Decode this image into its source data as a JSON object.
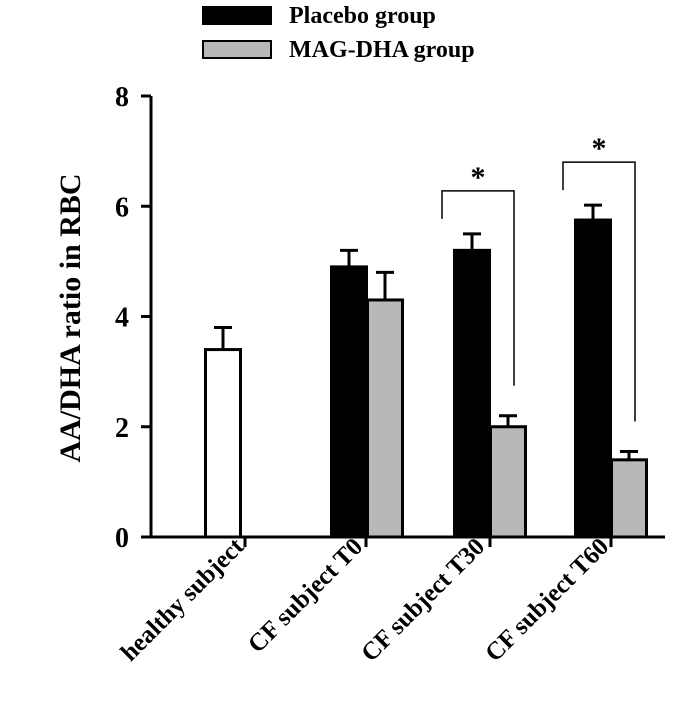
{
  "chart_data": {
    "type": "bar",
    "title": "",
    "xlabel": "",
    "ylabel": "AA/DHA ratio in RBC",
    "ylim": [
      0,
      8
    ],
    "yticks": [
      "0",
      "2",
      "4",
      "6",
      "8"
    ],
    "grid": false,
    "legend_position": "top",
    "categories": [
      "healthy subject",
      "CF subject T0",
      "CF subject T30",
      "CF subject T60"
    ],
    "series": [
      {
        "name": "Placebo group",
        "color": "#000000",
        "values": [
          null,
          4.9,
          5.2,
          5.75
        ],
        "errors": [
          null,
          0.3,
          0.3,
          0.27
        ]
      },
      {
        "name": "MAG-DHA group",
        "color": "#b8b8b8",
        "values": [
          null,
          4.3,
          2.0,
          1.4
        ],
        "errors": [
          null,
          0.5,
          0.2,
          0.15
        ]
      }
    ],
    "healthy": {
      "value": 3.4,
      "error": 0.4,
      "color": "#ffffff"
    },
    "significance": [
      {
        "category": "CF subject T30",
        "label": "*"
      },
      {
        "category": "CF subject T60",
        "label": "*"
      }
    ]
  }
}
